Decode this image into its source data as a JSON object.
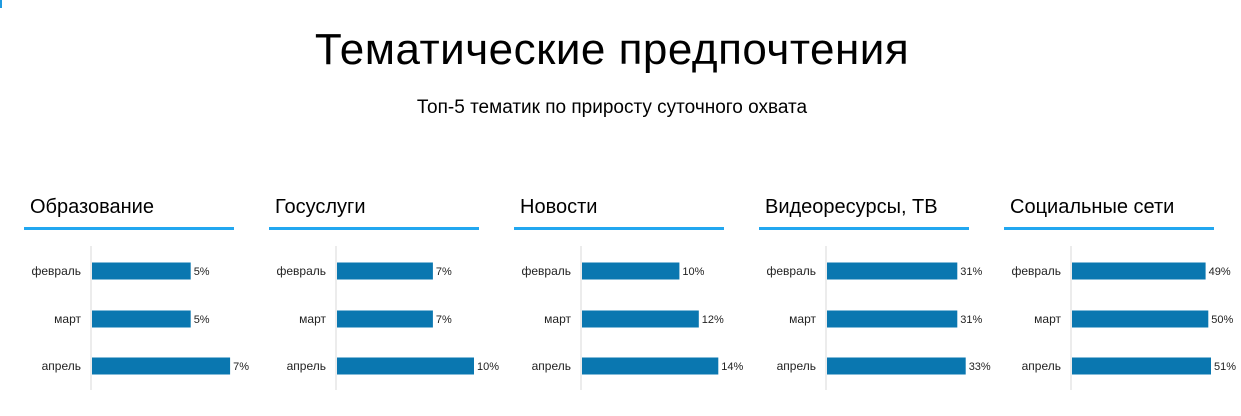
{
  "page": {
    "title": "Тематические предпочтения",
    "subtitle": "Топ-5 тематик по приросту суточного охвата",
    "accent_color": "#22a7f0",
    "bar_color": "#0a77b0"
  },
  "chart_data": [
    {
      "type": "bar",
      "orientation": "horizontal",
      "title": "Образование",
      "categories": [
        "февраль",
        "март",
        "апрель"
      ],
      "values": [
        5,
        5,
        7
      ],
      "value_labels": [
        "5%",
        "5%",
        "7%"
      ],
      "xlim": [
        0,
        7.5
      ]
    },
    {
      "type": "bar",
      "orientation": "horizontal",
      "title": "Госуслуги",
      "categories": [
        "февраль",
        "март",
        "апрель"
      ],
      "values": [
        7,
        7,
        10
      ],
      "value_labels": [
        "7%",
        "7%",
        "10%"
      ],
      "xlim": [
        0,
        10.8
      ]
    },
    {
      "type": "bar",
      "orientation": "horizontal",
      "title": "Новости",
      "categories": [
        "февраль",
        "март",
        "апрель"
      ],
      "values": [
        10,
        12,
        14
      ],
      "value_labels": [
        "10%",
        "12%",
        "14%"
      ],
      "xlim": [
        0,
        15.2
      ]
    },
    {
      "type": "bar",
      "orientation": "horizontal",
      "title": "Видеоресурсы, ТВ",
      "categories": [
        "февраль",
        "март",
        "апрель"
      ],
      "values": [
        31,
        31,
        33
      ],
      "value_labels": [
        "31%",
        "31%",
        "33%"
      ],
      "xlim": [
        0,
        35.2
      ]
    },
    {
      "type": "bar",
      "orientation": "horizontal",
      "title": "Социальные сети",
      "categories": [
        "февраль",
        "март",
        "апрель"
      ],
      "values": [
        49,
        50,
        51
      ],
      "value_labels": [
        "49%",
        "50%",
        "51%"
      ],
      "xlim": [
        0,
        54.3
      ]
    }
  ]
}
